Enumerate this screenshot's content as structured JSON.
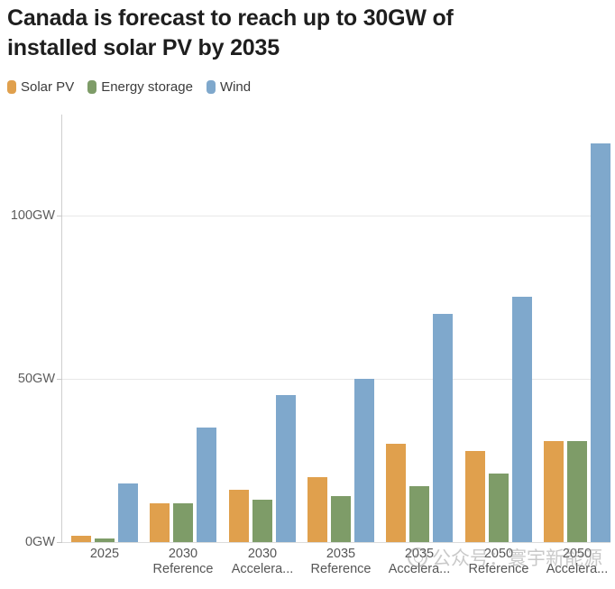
{
  "title": {
    "line1": "Canada is forecast to reach up to 30GW of",
    "line2": "installed solar PV by 2035"
  },
  "watermark": {
    "text": "公众号：寰宇新能源",
    "icon": "round-badge-logo"
  },
  "chart_data": {
    "type": "bar",
    "title": "Canada is forecast to reach up to 30GW of installed solar PV by 2035",
    "unit": "GW",
    "grid": "horizontal",
    "legend_position": "top-left",
    "ylim": [
      0,
      130
    ],
    "yticks": [
      {
        "value": 0,
        "label": "0GW"
      },
      {
        "value": 50,
        "label": "50GW"
      },
      {
        "value": 100,
        "label": "100GW"
      }
    ],
    "categories": [
      "2025",
      "2030 Reference",
      "2030 Accelerated",
      "2035 Reference",
      "2035 Accelerated",
      "2050 Reference",
      "2050 Accelerated"
    ],
    "category_labels": [
      [
        "2025",
        ""
      ],
      [
        "2030",
        "Reference"
      ],
      [
        "2030",
        "Accelera..."
      ],
      [
        "2035",
        "Reference"
      ],
      [
        "2035",
        "Accelera..."
      ],
      [
        "2050",
        "Reference"
      ],
      [
        "2050",
        "Accelera..."
      ]
    ],
    "series": [
      {
        "name": "Solar PV",
        "color": "#E0A04D",
        "values": [
          2,
          12,
          16,
          20,
          30,
          28,
          31
        ]
      },
      {
        "name": "Energy storage",
        "color": "#7E9C68",
        "values": [
          1,
          12,
          13,
          14,
          17,
          21,
          31
        ]
      },
      {
        "name": "Wind",
        "color": "#7FA8CC",
        "values": [
          18,
          35,
          45,
          50,
          70,
          75,
          122
        ]
      }
    ]
  }
}
